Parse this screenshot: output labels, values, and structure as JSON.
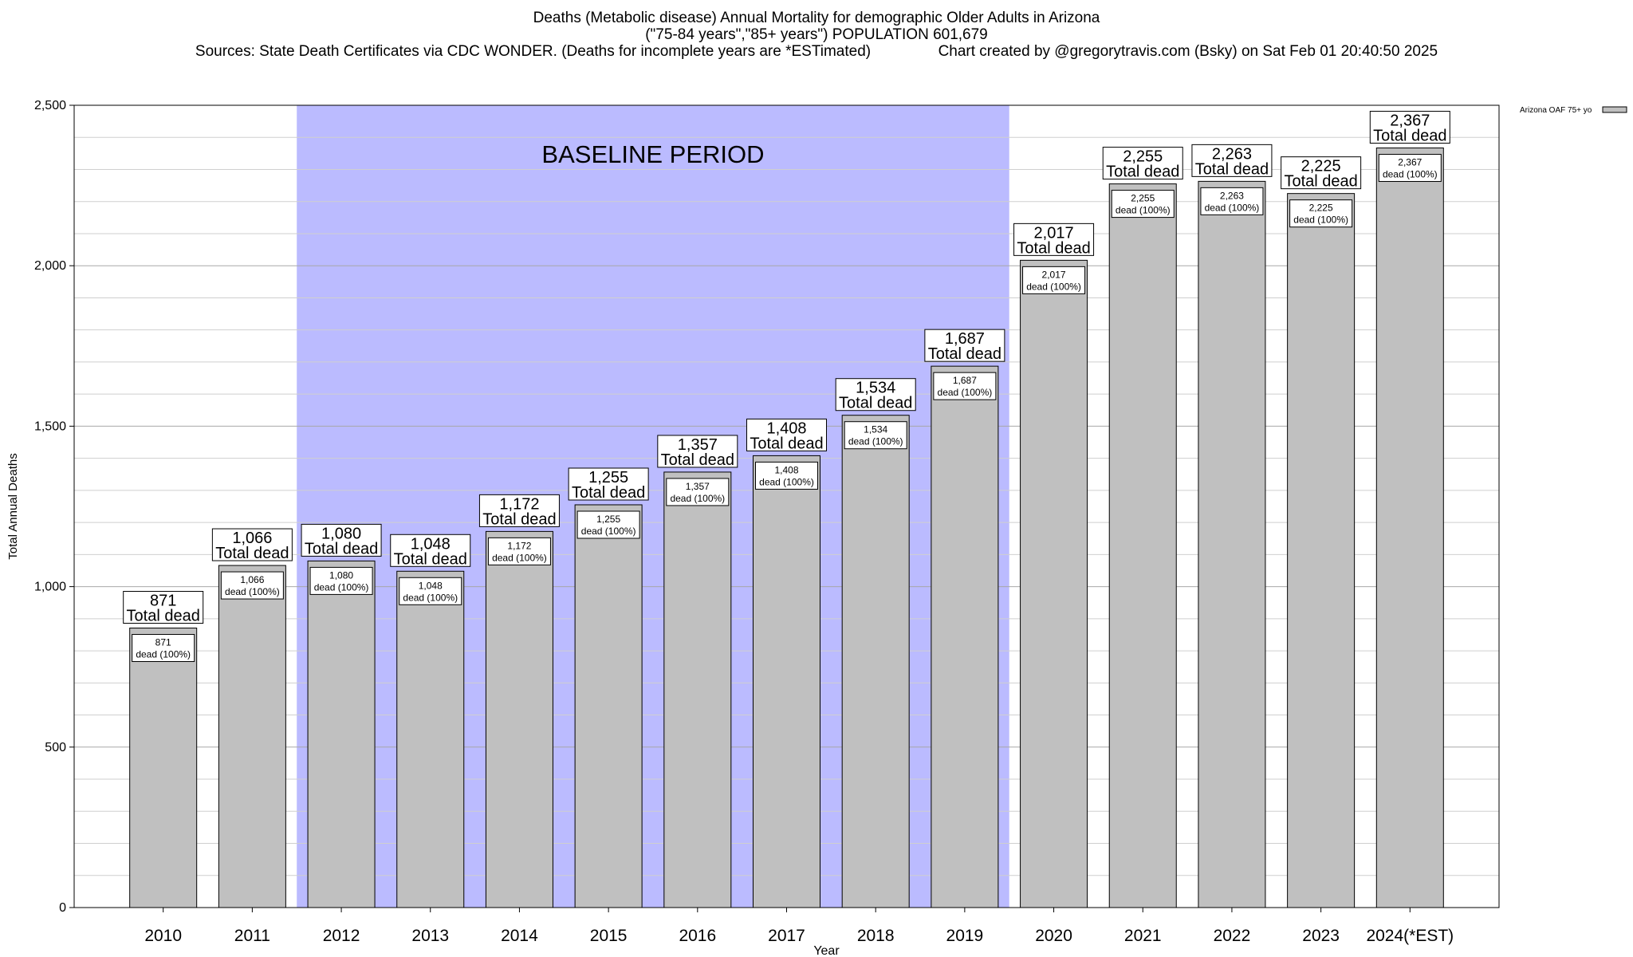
{
  "header": {
    "title": "Deaths (Metabolic disease) Annual Mortality for demographic Older Adults in Arizona",
    "subtitle": "(\"75-84 years\",\"85+ years\") POPULATION 601,679",
    "sources": "Sources: State Death Certificates via CDC WONDER. (Deaths for incomplete years are *ESTimated)",
    "credit": "Chart created by @gregorytravis.com (Bsky) on Sat Feb 01 20:40:50 2025"
  },
  "chart_data": {
    "type": "bar",
    "xlabel": "Year",
    "ylabel": "Total Annual Deaths",
    "ylim": [
      0,
      2500
    ],
    "yticks": [
      0,
      500,
      1000,
      1500,
      2000,
      2500
    ],
    "ytick_labels": [
      "0",
      "500",
      "1,000",
      "1,500",
      "2,000",
      "2,500"
    ],
    "minor_gridline_step": 100,
    "grid": true,
    "categories": [
      "2010",
      "2011",
      "2012",
      "2013",
      "2014",
      "2015",
      "2016",
      "2017",
      "2018",
      "2019",
      "2020",
      "2021",
      "2022",
      "2023",
      "2024(*EST)"
    ],
    "series": [
      {
        "name": "Arizona OAF 75+ yo",
        "values": [
          871,
          1066,
          1080,
          1048,
          1172,
          1255,
          1357,
          1408,
          1534,
          1687,
          2017,
          2255,
          2263,
          2225,
          2367
        ],
        "value_labels": [
          "871",
          "1,066",
          "1,080",
          "1,048",
          "1,172",
          "1,255",
          "1,357",
          "1,408",
          "1,534",
          "1,687",
          "2,017",
          "2,255",
          "2,263",
          "2,225",
          "2,367"
        ]
      }
    ],
    "total_label_text": "Total dead",
    "inner_label_text": "dead (100%)",
    "baseline": {
      "label": "BASELINE PERIOD",
      "start": "2012",
      "end": "2019",
      "color": "#bbbbff"
    },
    "bar_color": "#c0c0c0",
    "legend_position": "top-right"
  }
}
